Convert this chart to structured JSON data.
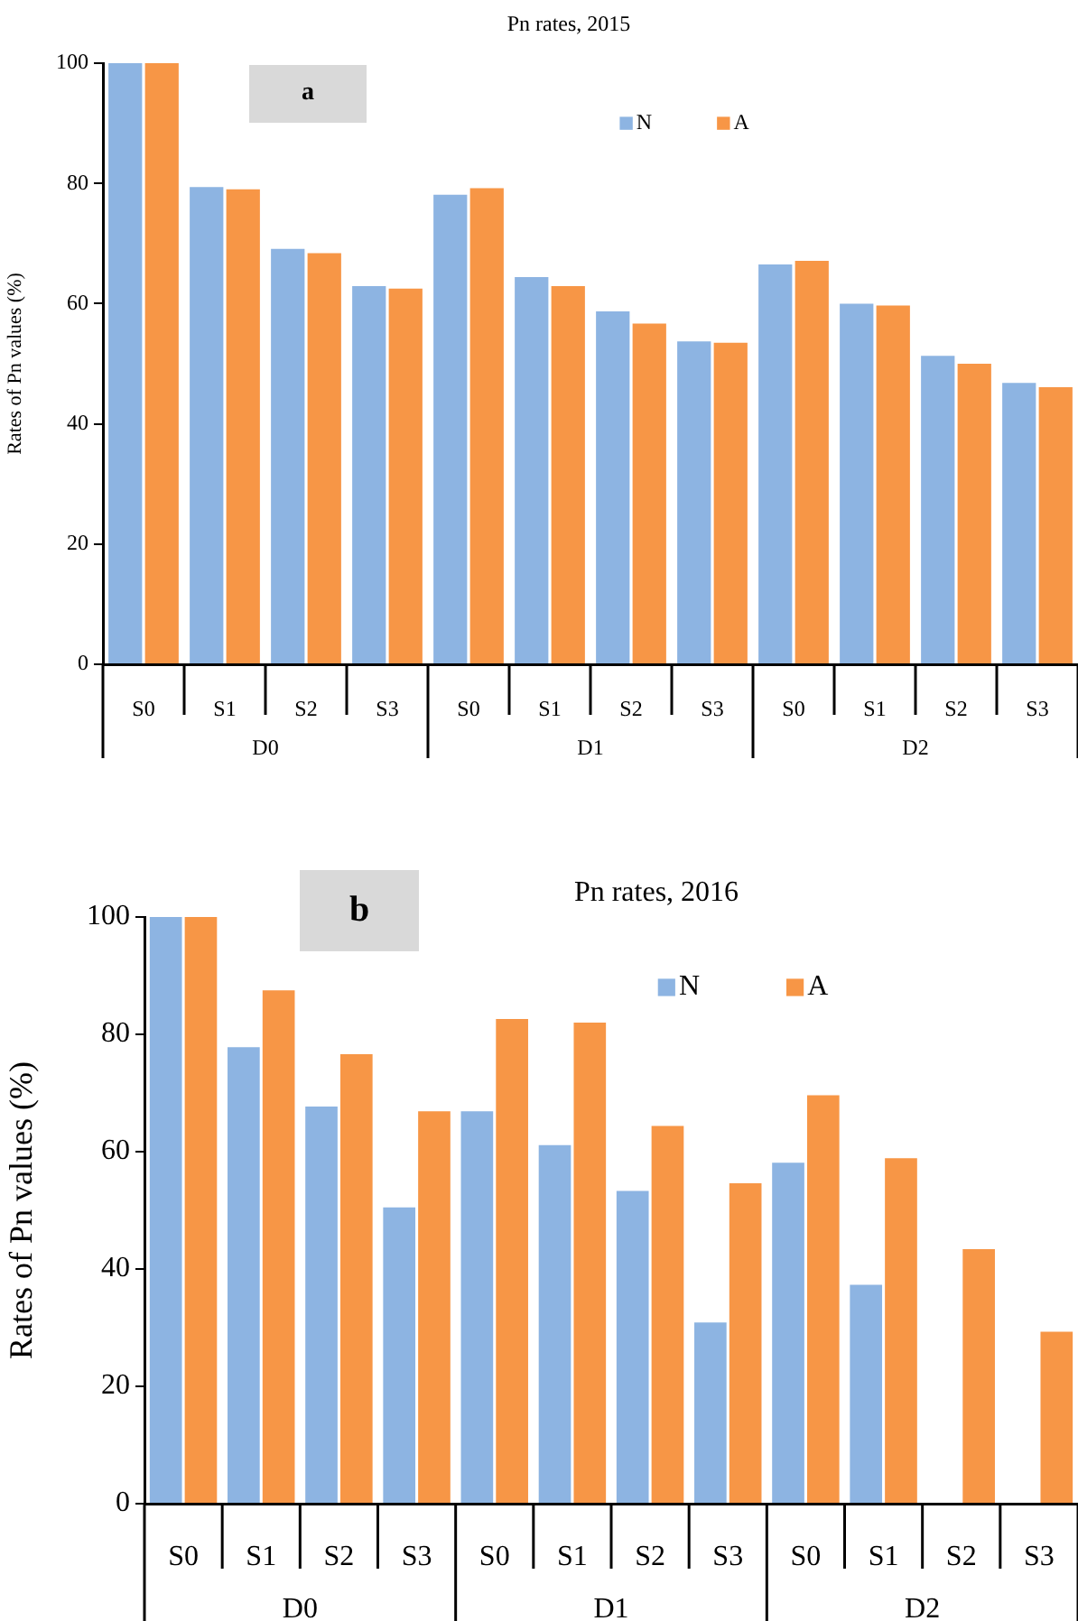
{
  "chart_data": [
    {
      "type": "bar",
      "title": "Pn rates, 2015",
      "ylabel": "Rates of Pn values (%)",
      "annotations": [
        "a",
        "D0",
        "D1",
        "D2"
      ],
      "categories": [
        "S0",
        "S1",
        "S2",
        "S3",
        "S0",
        "S1",
        "S2",
        "S3",
        "S0",
        "S1",
        "S2",
        "S3"
      ],
      "series": [
        {
          "name": "N",
          "color": "#8db4e2",
          "values": [
            100,
            79.4,
            69.1,
            62.9,
            78.1,
            64.4,
            58.7,
            53.7,
            66.5,
            60.0,
            51.3,
            46.8
          ]
        },
        {
          "name": "A",
          "color": "#f79646",
          "values": [
            100,
            79.0,
            68.4,
            62.5,
            79.2,
            62.9,
            56.7,
            53.5,
            67.1,
            59.7,
            50.0,
            46.1
          ]
        }
      ],
      "ylim": [
        0,
        100
      ],
      "yticks": [
        0,
        20,
        40,
        60,
        80,
        100
      ],
      "grid": false,
      "legend": "top right"
    },
    {
      "type": "bar",
      "title": "Pn rates, 2016",
      "ylabel": "Rates of Pn values (%)",
      "annotations": [
        "b",
        "D0",
        "D1",
        "D2"
      ],
      "categories": [
        "S0",
        "S1",
        "S2",
        "S3",
        "S0",
        "S1",
        "S2",
        "S3",
        "S0",
        "S1",
        "S2",
        "S3"
      ],
      "series": [
        {
          "name": "N",
          "color": "#8db4e2",
          "values": [
            100,
            77.8,
            67.7,
            50.5,
            66.9,
            61.1,
            53.3,
            30.9,
            58.1,
            37.3,
            null,
            null
          ]
        },
        {
          "name": "A",
          "color": "#f79646",
          "values": [
            100,
            87.5,
            76.6,
            66.9,
            82.6,
            82.0,
            64.4,
            54.6,
            69.6,
            58.9,
            43.4,
            29.3
          ]
        }
      ],
      "ylim": [
        0,
        100
      ],
      "yticks": [
        0,
        20,
        40,
        60,
        80,
        100
      ],
      "grid": false,
      "legend": "top right"
    }
  ]
}
